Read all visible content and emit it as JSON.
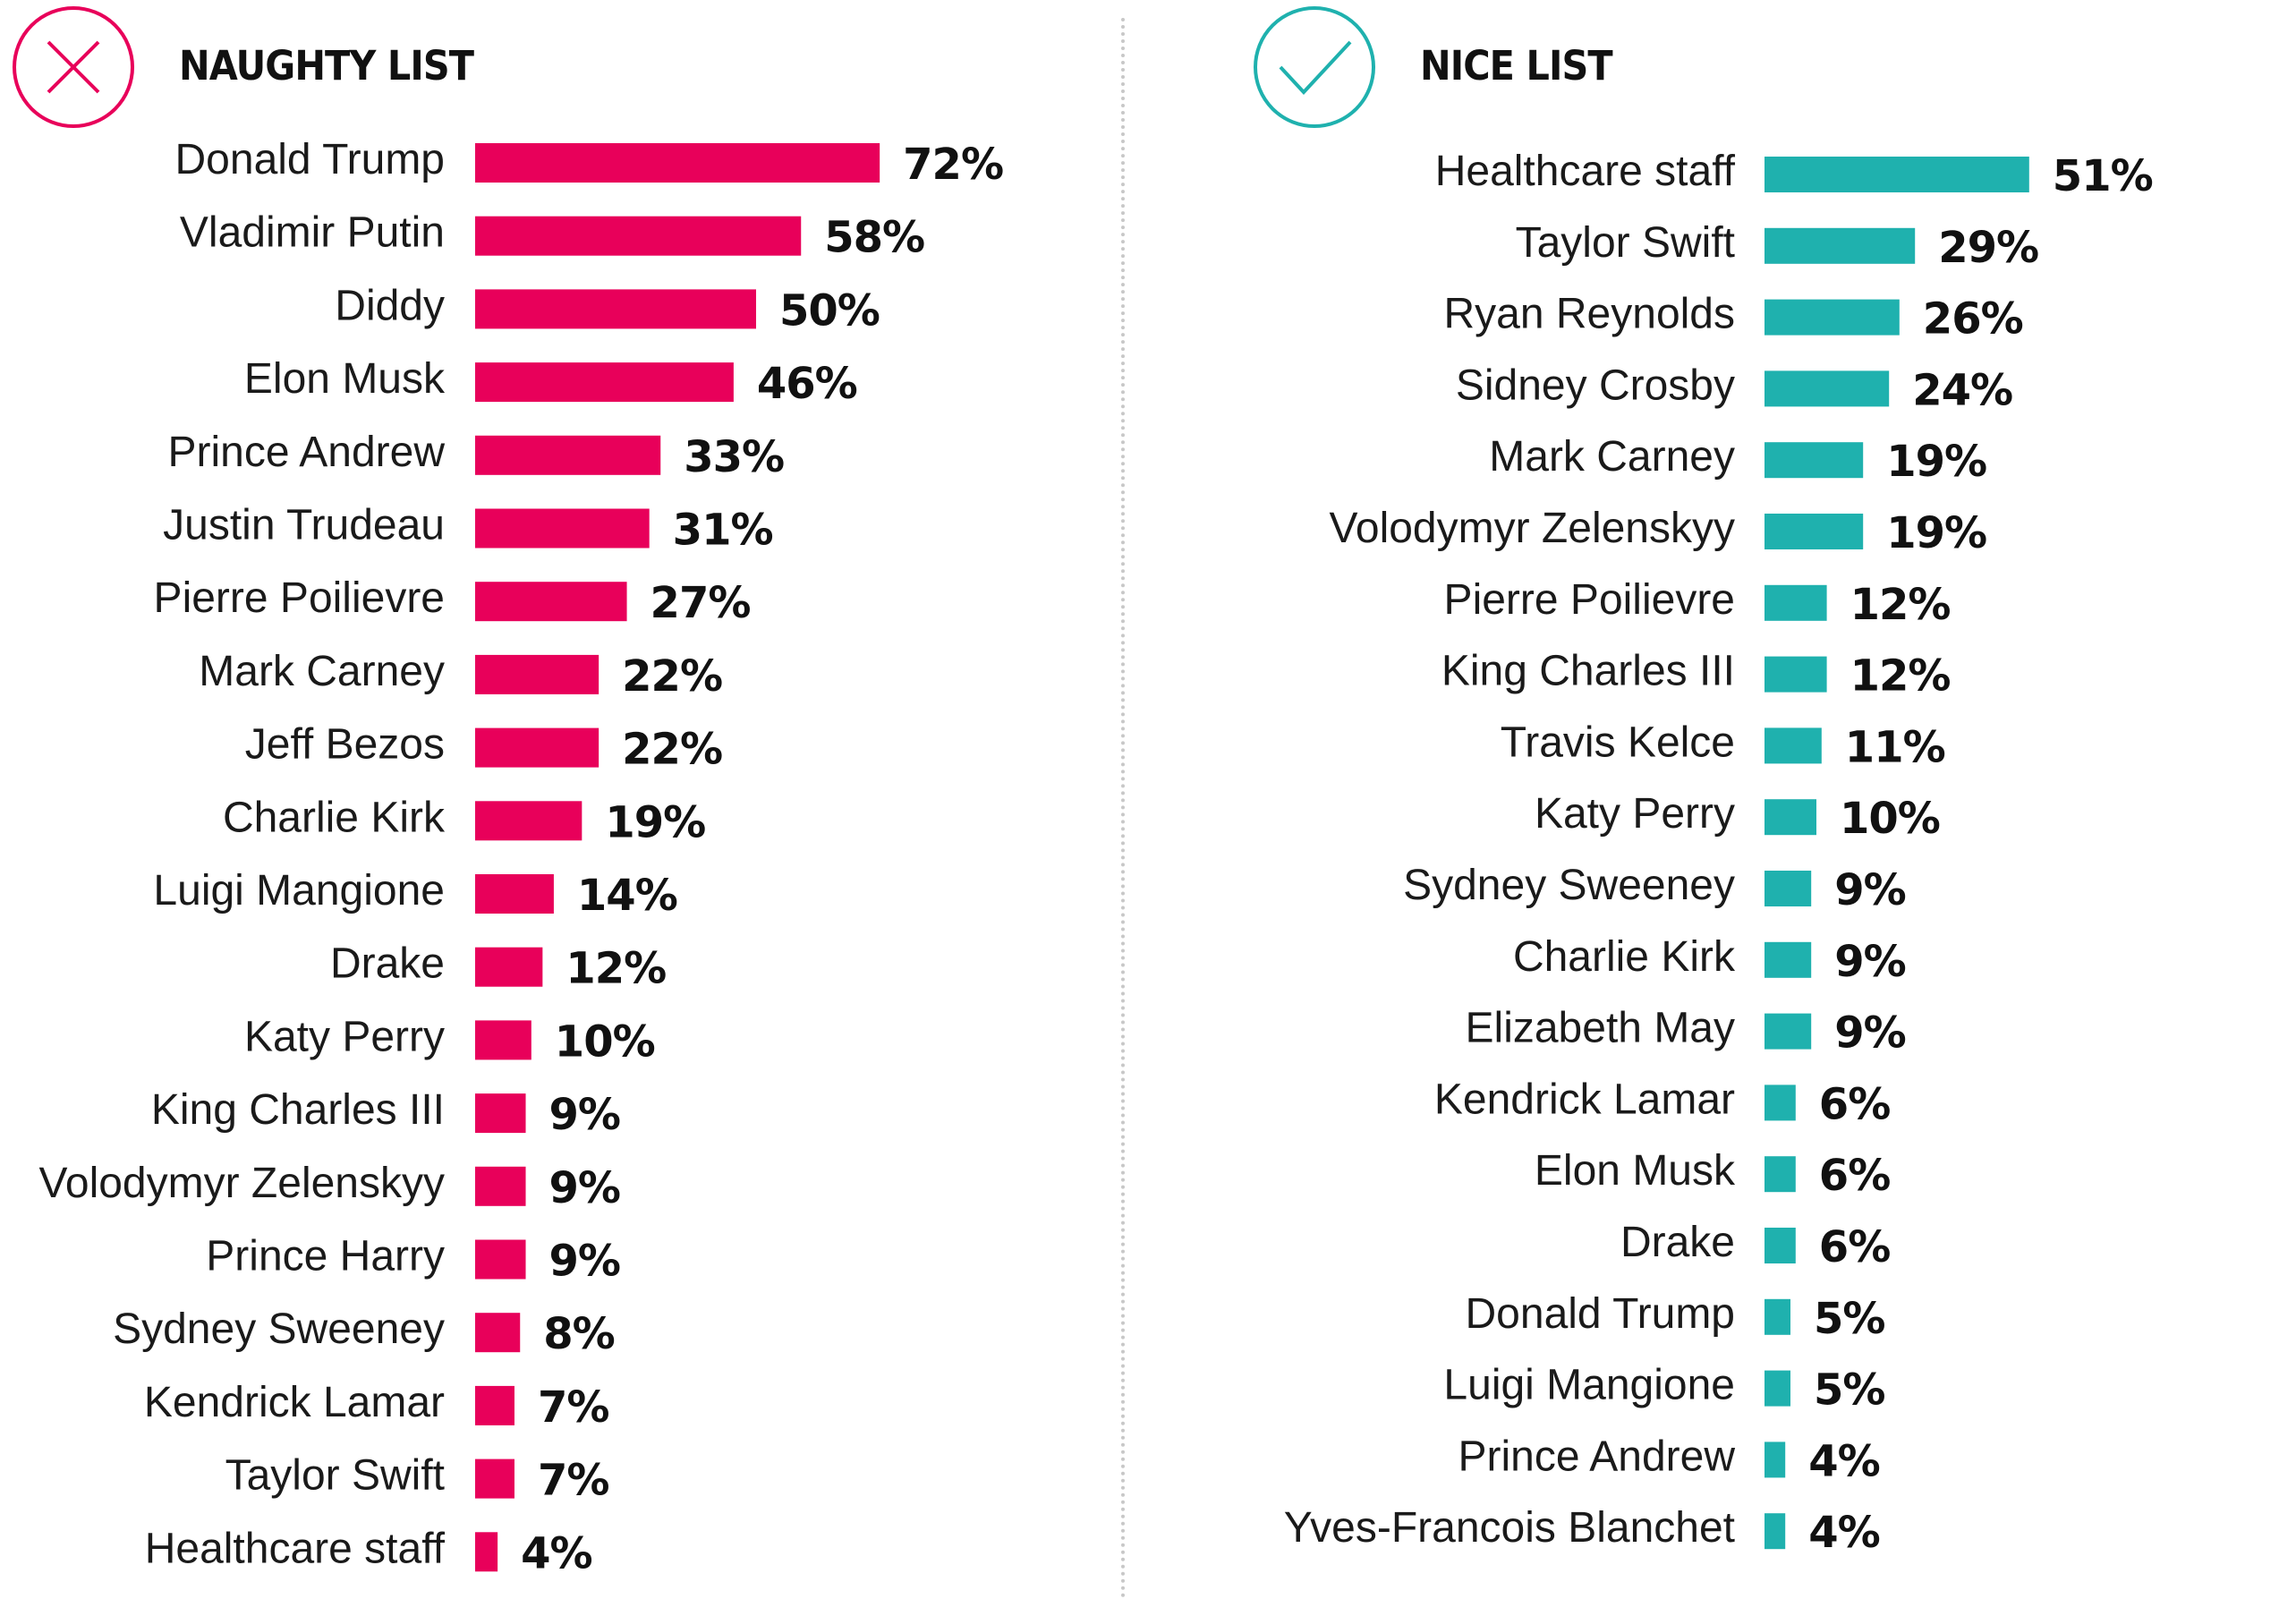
{
  "naughty": {
    "title": "NAUGHTY LIST",
    "icon": "x-circle-icon",
    "accent": "#E8005A",
    "chart_data": {
      "type": "bar",
      "orientation": "horizontal",
      "categories": [
        "Donald Trump",
        "Vladimir Putin",
        "Diddy",
        "Elon Musk",
        "Prince Andrew",
        "Justin Trudeau",
        "Pierre Poilievre",
        "Mark Carney",
        "Jeff Bezos",
        "Charlie Kirk",
        "Luigi Mangione",
        "Drake",
        "Katy Perry",
        "King Charles III",
        "Volodymyr Zelenskyy",
        "Prince Harry",
        "Sydney Sweeney",
        "Kendrick Lamar",
        "Taylor Swift",
        "Healthcare staff"
      ],
      "values": [
        72,
        58,
        50,
        46,
        33,
        31,
        27,
        22,
        22,
        19,
        14,
        12,
        10,
        9,
        9,
        9,
        8,
        7,
        7,
        4
      ],
      "value_labels": [
        "72%",
        "58%",
        "50%",
        "46%",
        "33%",
        "31%",
        "27%",
        "22%",
        "22%",
        "19%",
        "14%",
        "12%",
        "10%",
        "9%",
        "9%",
        "9%",
        "8%",
        "7%",
        "7%",
        "4%"
      ],
      "unit": "%",
      "grid": false
    }
  },
  "nice": {
    "title": "NICE LIST",
    "icon": "check-circle-icon",
    "accent": "#1FB1AE",
    "chart_data": {
      "type": "bar",
      "orientation": "horizontal",
      "categories": [
        "Healthcare staff",
        "Taylor Swift",
        "Ryan Reynolds",
        "Sidney Crosby",
        "Mark Carney",
        "Volodymyr Zelenskyy",
        "Pierre Poilievre",
        "King Charles III",
        "Travis Kelce",
        "Katy Perry",
        "Sydney Sweeney",
        "Charlie Kirk",
        "Elizabeth May",
        "Kendrick Lamar",
        "Elon Musk",
        "Drake",
        "Donald Trump",
        "Luigi Mangione",
        "Prince Andrew",
        "Yves-Francois Blanchet"
      ],
      "values": [
        51,
        29,
        26,
        24,
        19,
        19,
        12,
        12,
        11,
        10,
        9,
        9,
        9,
        6,
        6,
        6,
        5,
        5,
        4,
        4
      ],
      "value_labels": [
        "51%",
        "29%",
        "26%",
        "24%",
        "19%",
        "19%",
        "12%",
        "12%",
        "11%",
        "10%",
        "9%",
        "9%",
        "9%",
        "6%",
        "6%",
        "6%",
        "5%",
        "5%",
        "4%",
        "4%"
      ],
      "unit": "%",
      "grid": false
    }
  }
}
